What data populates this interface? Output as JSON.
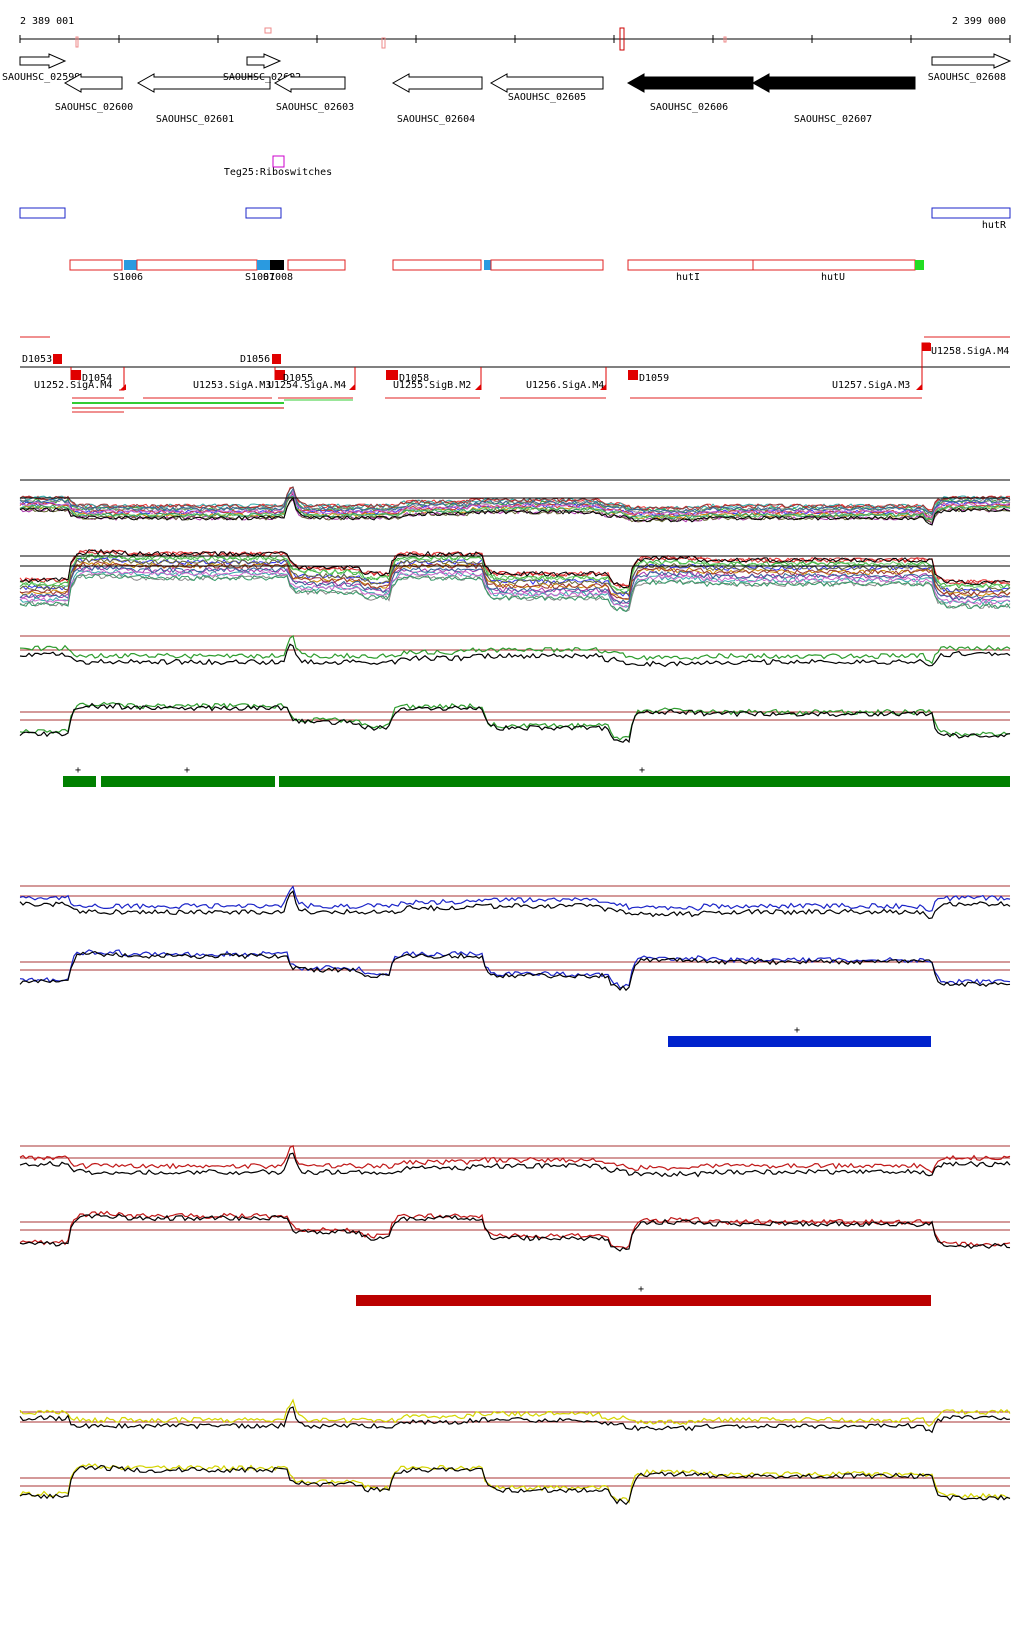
{
  "ruler": {
    "start_label": "2 389 001",
    "end_label": "2 399 000"
  },
  "genes": [
    {
      "id": "SAOUHSC_02599",
      "label": "SAOUHSC_02599",
      "strand": "+",
      "start": 20,
      "end": 65,
      "lane": 0,
      "filled": false
    },
    {
      "id": "SAOUHSC_02600",
      "label": "SAOUHSC_02600",
      "strand": "-",
      "start": 65,
      "end": 122,
      "lane": 1,
      "filled": false
    },
    {
      "id": "SAOUHSC_02601",
      "label": "SAOUHSC_02601",
      "strand": "-",
      "start": 138,
      "end": 270,
      "lane": 1,
      "filled": false
    },
    {
      "id": "SAOUHSC_02602",
      "label": "SAOUHSC_02602",
      "strand": "+",
      "start": 247,
      "end": 280,
      "lane": 0,
      "filled": false
    },
    {
      "id": "SAOUHSC_02603",
      "label": "SAOUHSC_02603",
      "strand": "-",
      "start": 275,
      "end": 345,
      "lane": 1,
      "filled": false
    },
    {
      "id": "SAOUHSC_02604",
      "label": "SAOUHSC_02604",
      "strand": "-",
      "start": 393,
      "end": 482,
      "lane": 1,
      "filled": false
    },
    {
      "id": "SAOUHSC_02605",
      "label": "SAOUHSC_02605",
      "strand": "-",
      "start": 491,
      "end": 603,
      "lane": 1,
      "filled": false
    },
    {
      "id": "SAOUHSC_02606",
      "label": "SAOUHSC_02606",
      "strand": "-",
      "start": 628,
      "end": 753,
      "lane": 1,
      "filled": true
    },
    {
      "id": "SAOUHSC_02607",
      "label": "SAOUHSC_02607",
      "strand": "-",
      "start": 753,
      "end": 915,
      "lane": 1,
      "filled": true
    },
    {
      "id": "SAOUHSC_02608",
      "label": "SAOUHSC_02608",
      "strand": "+",
      "start": 932,
      "end": 1010,
      "lane": 0,
      "filled": false
    }
  ],
  "riboswitch": {
    "label": "Teg25:Riboswitches"
  },
  "blue_feature": {
    "label": "hutR"
  },
  "red_features": [
    {
      "label": "S1006"
    },
    {
      "label": "S1007"
    },
    {
      "label": "S1008"
    },
    {
      "label": "hutI"
    },
    {
      "label": "hutU"
    }
  ],
  "regions": [
    {
      "label": "D1053"
    },
    {
      "label": "D1054"
    },
    {
      "label": "D1055"
    },
    {
      "label": "D1056"
    },
    {
      "label": "D1058"
    },
    {
      "label": "D1059"
    },
    {
      "label": "U1252.SigA.M4"
    },
    {
      "label": "U1253.SigA.M3"
    },
    {
      "label": "U1254.SigA.M4"
    },
    {
      "label": "U1255.SigB.M2"
    },
    {
      "label": "U1256.SigA.M4"
    },
    {
      "label": "U1257.SigA.M3"
    },
    {
      "label": "U1258.SigA.M4"
    }
  ],
  "segment_markers": [
    {
      "panel": "green",
      "mark": "+"
    },
    {
      "panel": "green",
      "mark": "+"
    },
    {
      "panel": "green",
      "mark": "+"
    },
    {
      "panel": "blue",
      "mark": "+"
    },
    {
      "panel": "red",
      "mark": "+"
    }
  ],
  "panel_colors": {
    "green": "#2e9c2e",
    "blue": "#1b24c8",
    "red": "#c01818",
    "yellow": "#d4d400",
    "segment_green": "#008000",
    "segment_blue": "#0022cc",
    "segment_red": "#bb0000"
  }
}
